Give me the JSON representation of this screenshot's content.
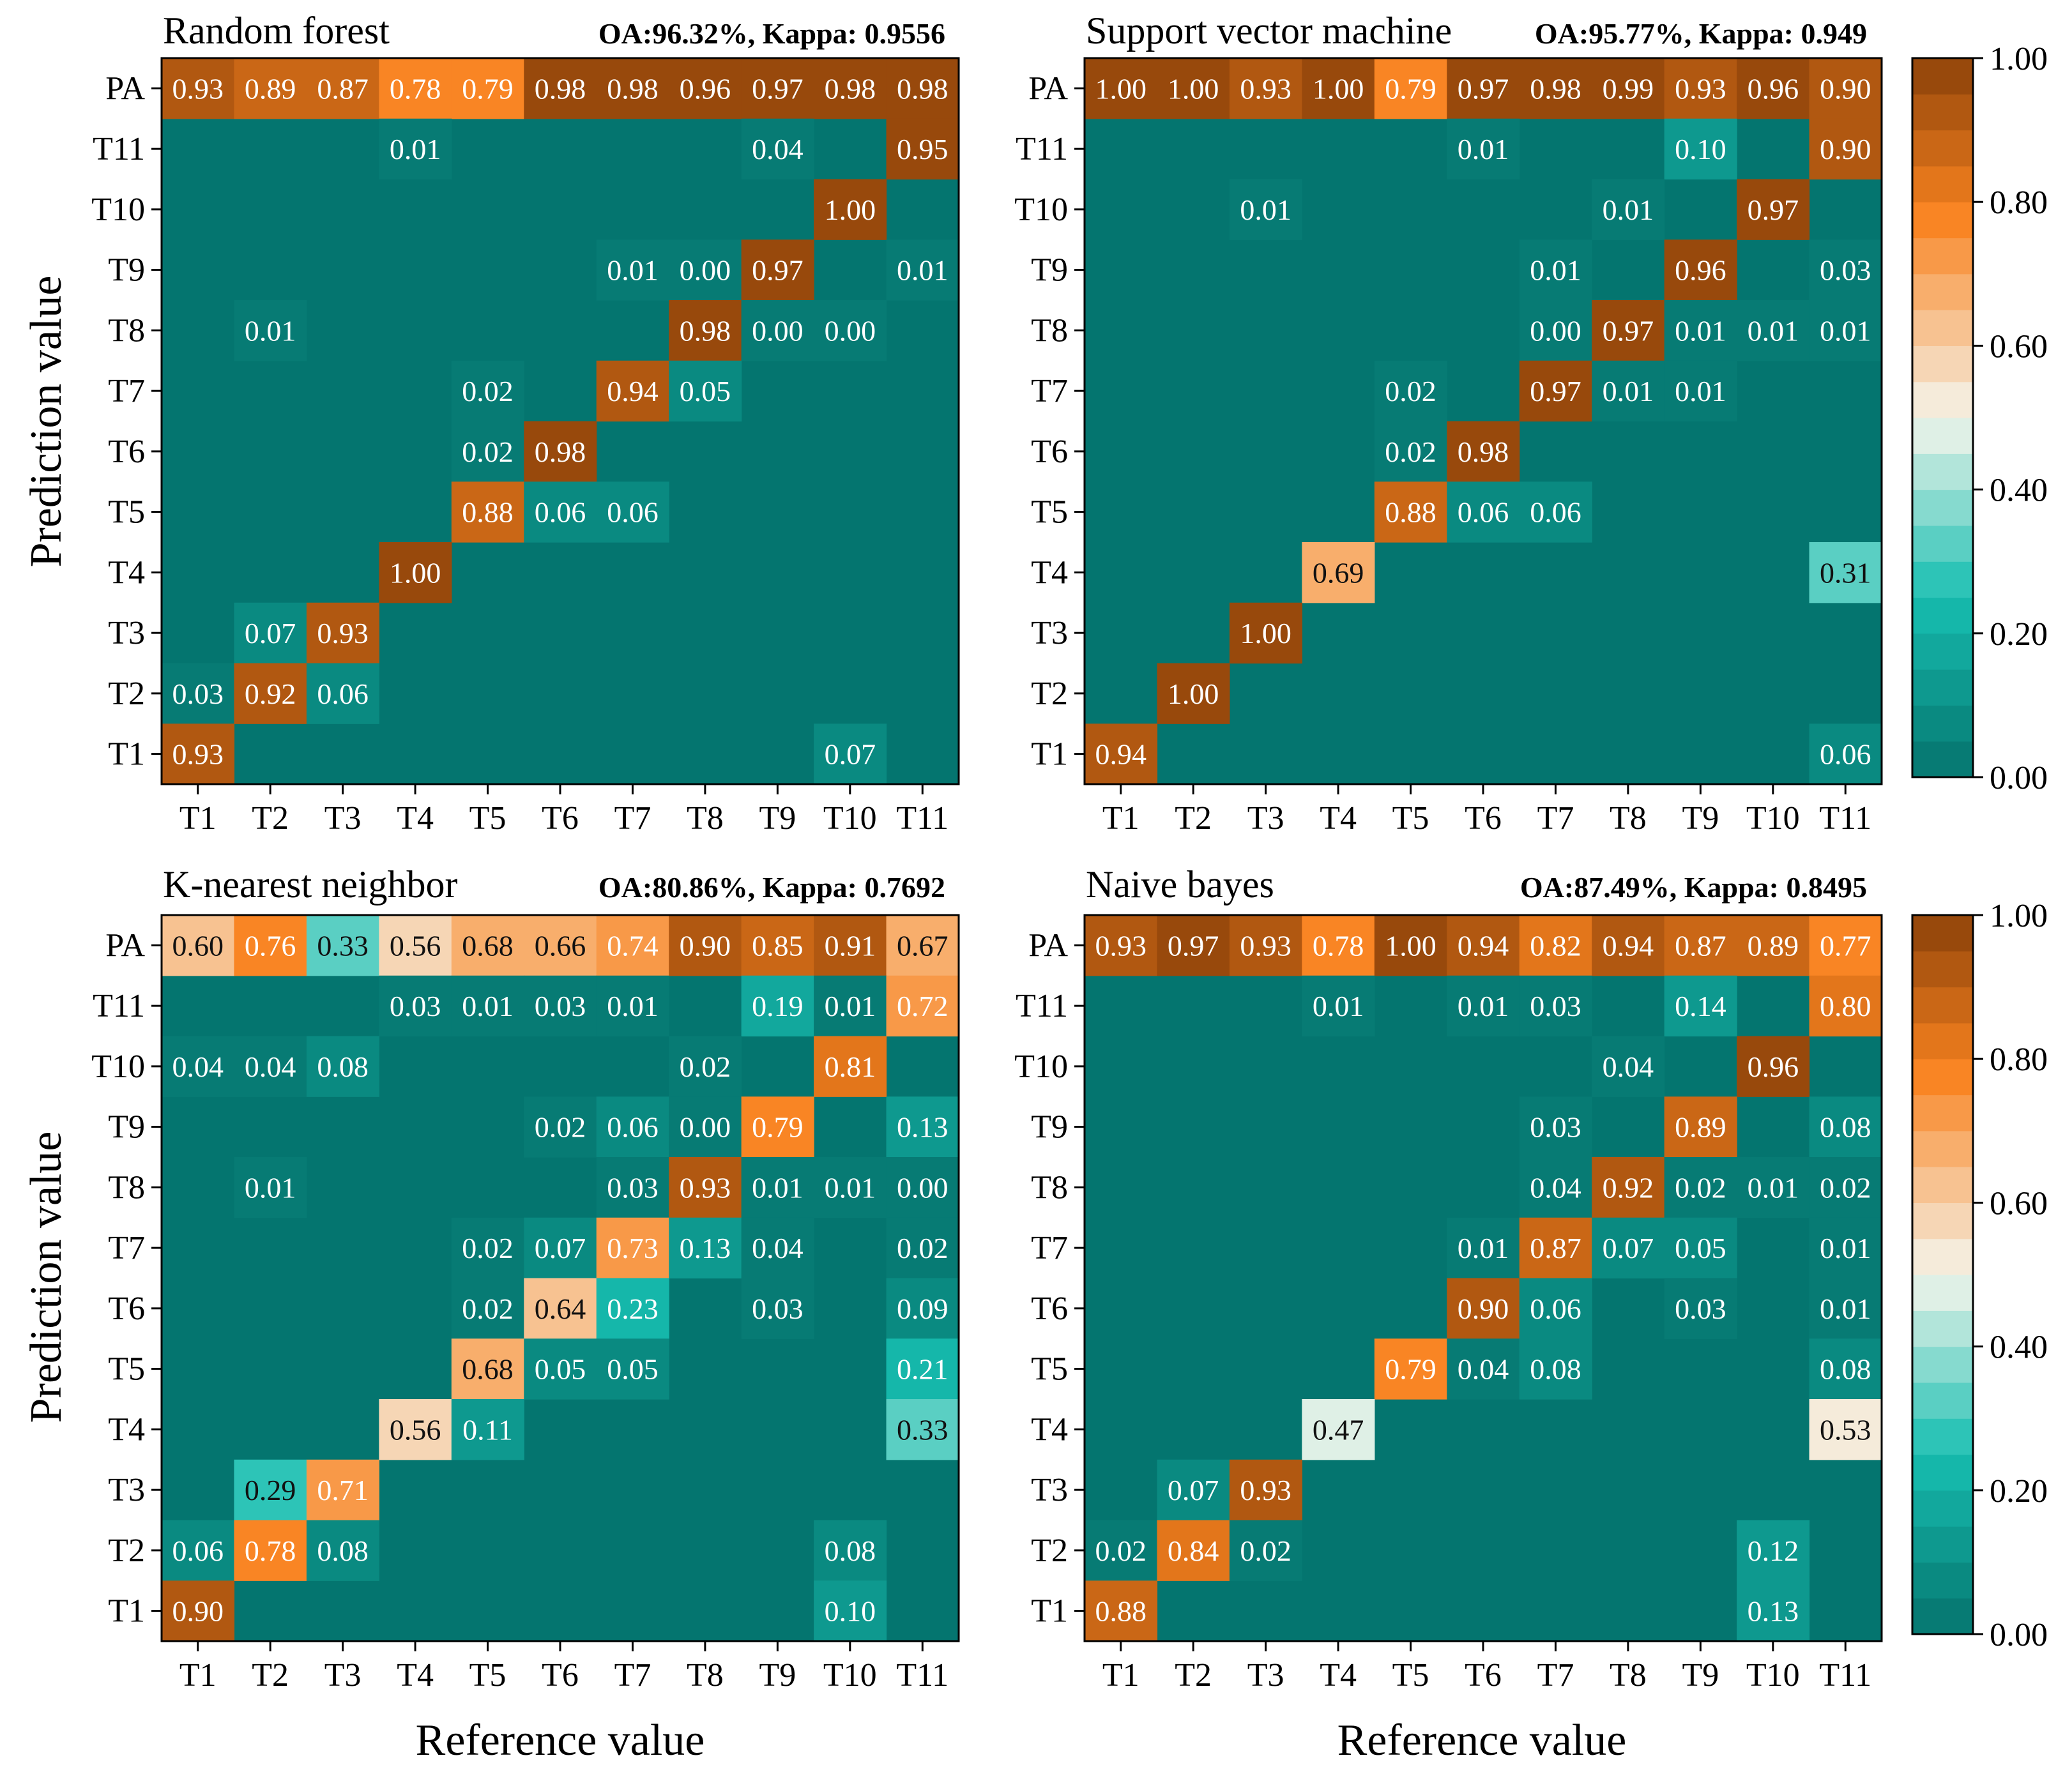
{
  "figure": {
    "ylabel": "Prediction value",
    "xlabel": "Reference value"
  },
  "colormap": {
    "low": "#05736d",
    "mid_low": "#17bfb1",
    "mid": "#f5f5ec",
    "mid_high": "#f98320",
    "high": "#8b4209",
    "cell_background": "#04756f"
  },
  "colorbar": {
    "ticks": [
      "0.00",
      "0.20",
      "0.40",
      "0.60",
      "0.80",
      "1.00"
    ],
    "range": [
      0,
      1
    ]
  },
  "chart_data": [
    {
      "type": "heatmap",
      "title": "Random forest",
      "metrics": "OA:96.32%, Kappa: 0.9556",
      "xlabel": "Reference value",
      "ylabel": "Prediction value",
      "x_categories": [
        "T1",
        "T2",
        "T3",
        "T4",
        "T5",
        "T6",
        "T7",
        "T8",
        "T9",
        "T10",
        "T11"
      ],
      "y_categories": [
        "PA",
        "T11",
        "T10",
        "T9",
        "T8",
        "T7",
        "T6",
        "T5",
        "T4",
        "T3",
        "T2",
        "T1"
      ],
      "values": [
        [
          0.93,
          0.89,
          0.87,
          0.78,
          0.79,
          0.98,
          0.98,
          0.96,
          0.97,
          0.98,
          0.98
        ],
        [
          null,
          null,
          null,
          0.01,
          null,
          null,
          null,
          null,
          0.04,
          null,
          0.95
        ],
        [
          null,
          null,
          null,
          null,
          null,
          null,
          null,
          null,
          null,
          1.0,
          null
        ],
        [
          null,
          null,
          null,
          null,
          null,
          null,
          0.01,
          0.0,
          0.97,
          null,
          0.01
        ],
        [
          null,
          0.01,
          null,
          null,
          null,
          null,
          null,
          0.98,
          0.0,
          0.0,
          null
        ],
        [
          null,
          null,
          null,
          null,
          0.02,
          null,
          0.94,
          0.05,
          null,
          null,
          null
        ],
        [
          null,
          null,
          null,
          null,
          0.02,
          0.98,
          null,
          null,
          null,
          null,
          null
        ],
        [
          null,
          null,
          null,
          null,
          0.88,
          0.06,
          0.06,
          null,
          null,
          null,
          null
        ],
        [
          null,
          null,
          null,
          1.0,
          null,
          null,
          null,
          null,
          null,
          null,
          null
        ],
        [
          null,
          0.07,
          0.93,
          null,
          null,
          null,
          null,
          null,
          null,
          null,
          null
        ],
        [
          0.03,
          0.92,
          0.06,
          null,
          null,
          null,
          null,
          null,
          null,
          null,
          null
        ],
        [
          0.93,
          null,
          null,
          null,
          null,
          null,
          null,
          null,
          null,
          0.07,
          null
        ]
      ]
    },
    {
      "type": "heatmap",
      "title": "Support vector machine",
      "metrics": "OA:95.77%, Kappa: 0.949",
      "xlabel": "Reference value",
      "ylabel": "Prediction value",
      "x_categories": [
        "T1",
        "T2",
        "T3",
        "T4",
        "T5",
        "T6",
        "T7",
        "T8",
        "T9",
        "T10",
        "T11"
      ],
      "y_categories": [
        "PA",
        "T11",
        "T10",
        "T9",
        "T8",
        "T7",
        "T6",
        "T5",
        "T4",
        "T3",
        "T2",
        "T1"
      ],
      "values": [
        [
          1.0,
          1.0,
          0.93,
          1.0,
          0.79,
          0.97,
          0.98,
          0.99,
          0.93,
          0.96,
          0.9
        ],
        [
          null,
          null,
          null,
          null,
          null,
          0.01,
          null,
          null,
          0.1,
          null,
          0.9
        ],
        [
          null,
          null,
          0.01,
          null,
          null,
          null,
          null,
          0.01,
          null,
          0.97,
          null
        ],
        [
          null,
          null,
          null,
          null,
          null,
          null,
          0.01,
          null,
          0.96,
          null,
          0.03
        ],
        [
          null,
          null,
          null,
          null,
          null,
          null,
          0.0,
          0.97,
          0.01,
          0.01,
          0.01
        ],
        [
          null,
          null,
          null,
          null,
          0.02,
          null,
          0.97,
          0.01,
          0.01,
          null,
          null
        ],
        [
          null,
          null,
          null,
          null,
          0.02,
          0.98,
          null,
          null,
          null,
          null,
          null
        ],
        [
          null,
          null,
          null,
          null,
          0.88,
          0.06,
          0.06,
          null,
          null,
          null,
          null
        ],
        [
          null,
          null,
          null,
          0.69,
          null,
          null,
          null,
          null,
          null,
          null,
          0.31
        ],
        [
          null,
          null,
          1.0,
          null,
          null,
          null,
          null,
          null,
          null,
          null,
          null
        ],
        [
          null,
          1.0,
          null,
          null,
          null,
          null,
          null,
          null,
          null,
          null,
          null
        ],
        [
          0.94,
          null,
          null,
          null,
          null,
          null,
          null,
          null,
          null,
          null,
          0.06
        ]
      ]
    },
    {
      "type": "heatmap",
      "title": "K-nearest neighbor",
      "metrics": "OA:80.86%, Kappa: 0.7692",
      "xlabel": "Reference value",
      "ylabel": "Prediction value",
      "x_categories": [
        "T1",
        "T2",
        "T3",
        "T4",
        "T5",
        "T6",
        "T7",
        "T8",
        "T9",
        "T10",
        "T11"
      ],
      "y_categories": [
        "PA",
        "T11",
        "T10",
        "T9",
        "T8",
        "T7",
        "T6",
        "T5",
        "T4",
        "T3",
        "T2",
        "T1"
      ],
      "values": [
        [
          0.6,
          0.76,
          0.33,
          0.56,
          0.68,
          0.66,
          0.74,
          0.9,
          0.85,
          0.91,
          0.67
        ],
        [
          null,
          null,
          null,
          0.03,
          0.01,
          0.03,
          0.01,
          null,
          0.19,
          0.01,
          0.72
        ],
        [
          0.04,
          0.04,
          0.08,
          null,
          null,
          null,
          null,
          0.02,
          null,
          0.81,
          null
        ],
        [
          null,
          null,
          null,
          null,
          null,
          0.02,
          0.06,
          0.0,
          0.79,
          null,
          0.13
        ],
        [
          null,
          0.01,
          null,
          null,
          null,
          null,
          0.03,
          0.93,
          0.01,
          0.01,
          0.0
        ],
        [
          null,
          null,
          null,
          null,
          0.02,
          0.07,
          0.73,
          0.13,
          0.04,
          null,
          0.02
        ],
        [
          null,
          null,
          null,
          null,
          0.02,
          0.64,
          0.23,
          null,
          0.03,
          null,
          0.09
        ],
        [
          null,
          null,
          null,
          null,
          0.68,
          0.05,
          0.05,
          null,
          null,
          null,
          0.21
        ],
        [
          null,
          null,
          null,
          0.56,
          0.11,
          null,
          null,
          null,
          null,
          null,
          0.33
        ],
        [
          null,
          0.29,
          0.71,
          null,
          null,
          null,
          null,
          null,
          null,
          null,
          null
        ],
        [
          0.06,
          0.78,
          0.08,
          null,
          null,
          null,
          null,
          null,
          null,
          0.08,
          null
        ],
        [
          0.9,
          null,
          null,
          null,
          null,
          null,
          null,
          null,
          null,
          0.1,
          null
        ]
      ]
    },
    {
      "type": "heatmap",
      "title": "Naive bayes",
      "metrics": "OA:87.49%, Kappa: 0.8495",
      "xlabel": "Reference value",
      "ylabel": "Prediction value",
      "x_categories": [
        "T1",
        "T2",
        "T3",
        "T4",
        "T5",
        "T6",
        "T7",
        "T8",
        "T9",
        "T10",
        "T11"
      ],
      "y_categories": [
        "PA",
        "T11",
        "T10",
        "T9",
        "T8",
        "T7",
        "T6",
        "T5",
        "T4",
        "T3",
        "T2",
        "T1"
      ],
      "values": [
        [
          0.93,
          0.97,
          0.93,
          0.78,
          1.0,
          0.94,
          0.82,
          0.94,
          0.87,
          0.89,
          0.77
        ],
        [
          null,
          null,
          null,
          0.01,
          null,
          0.01,
          0.03,
          null,
          0.14,
          null,
          0.8
        ],
        [
          null,
          null,
          null,
          null,
          null,
          null,
          null,
          0.04,
          null,
          0.96,
          null
        ],
        [
          null,
          null,
          null,
          null,
          null,
          null,
          0.03,
          null,
          0.89,
          null,
          0.08
        ],
        [
          null,
          null,
          null,
          null,
          null,
          null,
          0.04,
          0.92,
          0.02,
          0.01,
          0.02
        ],
        [
          null,
          null,
          null,
          null,
          null,
          0.01,
          0.87,
          0.07,
          0.05,
          null,
          0.01
        ],
        [
          null,
          null,
          null,
          null,
          null,
          0.9,
          0.06,
          null,
          0.03,
          null,
          0.01
        ],
        [
          null,
          null,
          null,
          null,
          0.79,
          0.04,
          0.08,
          null,
          null,
          null,
          0.08
        ],
        [
          null,
          null,
          null,
          0.47,
          null,
          null,
          null,
          null,
          null,
          null,
          0.53
        ],
        [
          null,
          0.07,
          0.93,
          null,
          null,
          null,
          null,
          null,
          null,
          null,
          null
        ],
        [
          0.02,
          0.84,
          0.02,
          null,
          null,
          null,
          null,
          null,
          null,
          0.12,
          null
        ],
        [
          0.88,
          null,
          null,
          null,
          null,
          null,
          null,
          null,
          null,
          0.13,
          null
        ]
      ]
    }
  ]
}
